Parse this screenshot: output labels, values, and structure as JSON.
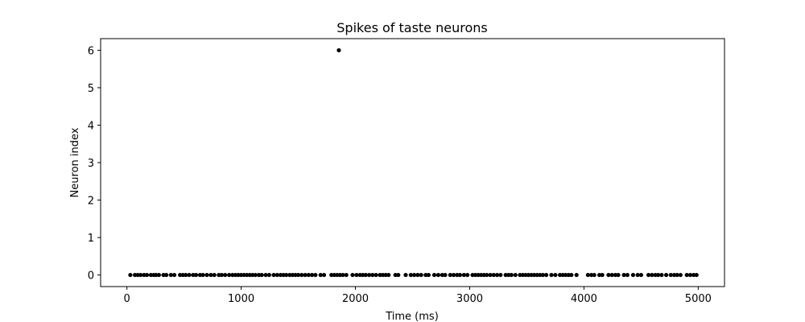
{
  "chart_data": {
    "type": "scatter",
    "title": "Spikes of taste neurons",
    "xlabel": "Time (ms)",
    "ylabel": "Neuron index",
    "xlim": [
      -230,
      5230
    ],
    "ylim": [
      -0.31,
      6.31
    ],
    "x_ticks": [
      0,
      1000,
      2000,
      3000,
      4000,
      5000
    ],
    "y_ticks": [
      0,
      1,
      2,
      3,
      4,
      5,
      6
    ],
    "grid": false,
    "marker_color": "#000000",
    "series": [
      {
        "points": [
          [
            1855,
            6
          ],
          [
            30,
            0
          ],
          [
            70,
            0
          ],
          [
            95,
            0
          ],
          [
            120,
            0
          ],
          [
            150,
            0
          ],
          [
            175,
            0
          ],
          [
            210,
            0
          ],
          [
            235,
            0
          ],
          [
            255,
            0
          ],
          [
            280,
            0
          ],
          [
            320,
            0
          ],
          [
            345,
            0
          ],
          [
            385,
            0
          ],
          [
            415,
            0
          ],
          [
            465,
            0
          ],
          [
            490,
            0
          ],
          [
            515,
            0
          ],
          [
            545,
            0
          ],
          [
            580,
            0
          ],
          [
            605,
            0
          ],
          [
            640,
            0
          ],
          [
            665,
            0
          ],
          [
            700,
            0
          ],
          [
            735,
            0
          ],
          [
            765,
            0
          ],
          [
            805,
            0
          ],
          [
            830,
            0
          ],
          [
            860,
            0
          ],
          [
            895,
            0
          ],
          [
            925,
            0
          ],
          [
            950,
            0
          ],
          [
            975,
            0
          ],
          [
            1000,
            0
          ],
          [
            1025,
            0
          ],
          [
            1050,
            0
          ],
          [
            1075,
            0
          ],
          [
            1100,
            0
          ],
          [
            1125,
            0
          ],
          [
            1155,
            0
          ],
          [
            1180,
            0
          ],
          [
            1215,
            0
          ],
          [
            1245,
            0
          ],
          [
            1285,
            0
          ],
          [
            1315,
            0
          ],
          [
            1345,
            0
          ],
          [
            1370,
            0
          ],
          [
            1395,
            0
          ],
          [
            1425,
            0
          ],
          [
            1450,
            0
          ],
          [
            1475,
            0
          ],
          [
            1500,
            0
          ],
          [
            1530,
            0
          ],
          [
            1560,
            0
          ],
          [
            1590,
            0
          ],
          [
            1620,
            0
          ],
          [
            1650,
            0
          ],
          [
            1695,
            0
          ],
          [
            1725,
            0
          ],
          [
            1790,
            0
          ],
          [
            1815,
            0
          ],
          [
            1840,
            0
          ],
          [
            1865,
            0
          ],
          [
            1890,
            0
          ],
          [
            1920,
            0
          ],
          [
            1975,
            0
          ],
          [
            2010,
            0
          ],
          [
            2040,
            0
          ],
          [
            2065,
            0
          ],
          [
            2090,
            0
          ],
          [
            2120,
            0
          ],
          [
            2150,
            0
          ],
          [
            2180,
            0
          ],
          [
            2215,
            0
          ],
          [
            2240,
            0
          ],
          [
            2265,
            0
          ],
          [
            2290,
            0
          ],
          [
            2350,
            0
          ],
          [
            2375,
            0
          ],
          [
            2440,
            0
          ],
          [
            2485,
            0
          ],
          [
            2515,
            0
          ],
          [
            2545,
            0
          ],
          [
            2575,
            0
          ],
          [
            2615,
            0
          ],
          [
            2640,
            0
          ],
          [
            2690,
            0
          ],
          [
            2725,
            0
          ],
          [
            2760,
            0
          ],
          [
            2785,
            0
          ],
          [
            2830,
            0
          ],
          [
            2860,
            0
          ],
          [
            2890,
            0
          ],
          [
            2915,
            0
          ],
          [
            2950,
            0
          ],
          [
            2980,
            0
          ],
          [
            3025,
            0
          ],
          [
            3050,
            0
          ],
          [
            3075,
            0
          ],
          [
            3100,
            0
          ],
          [
            3125,
            0
          ],
          [
            3150,
            0
          ],
          [
            3180,
            0
          ],
          [
            3210,
            0
          ],
          [
            3240,
            0
          ],
          [
            3270,
            0
          ],
          [
            3315,
            0
          ],
          [
            3340,
            0
          ],
          [
            3365,
            0
          ],
          [
            3400,
            0
          ],
          [
            3440,
            0
          ],
          [
            3465,
            0
          ],
          [
            3490,
            0
          ],
          [
            3515,
            0
          ],
          [
            3540,
            0
          ],
          [
            3565,
            0
          ],
          [
            3590,
            0
          ],
          [
            3615,
            0
          ],
          [
            3640,
            0
          ],
          [
            3670,
            0
          ],
          [
            3715,
            0
          ],
          [
            3750,
            0
          ],
          [
            3790,
            0
          ],
          [
            3815,
            0
          ],
          [
            3840,
            0
          ],
          [
            3865,
            0
          ],
          [
            3890,
            0
          ],
          [
            3935,
            0
          ],
          [
            4035,
            0
          ],
          [
            4065,
            0
          ],
          [
            4090,
            0
          ],
          [
            4135,
            0
          ],
          [
            4160,
            0
          ],
          [
            4215,
            0
          ],
          [
            4245,
            0
          ],
          [
            4275,
            0
          ],
          [
            4300,
            0
          ],
          [
            4350,
            0
          ],
          [
            4380,
            0
          ],
          [
            4430,
            0
          ],
          [
            4470,
            0
          ],
          [
            4500,
            0
          ],
          [
            4565,
            0
          ],
          [
            4595,
            0
          ],
          [
            4625,
            0
          ],
          [
            4650,
            0
          ],
          [
            4680,
            0
          ],
          [
            4720,
            0
          ],
          [
            4760,
            0
          ],
          [
            4790,
            0
          ],
          [
            4815,
            0
          ],
          [
            4845,
            0
          ],
          [
            4900,
            0
          ],
          [
            4930,
            0
          ],
          [
            4960,
            0
          ],
          [
            4985,
            0
          ]
        ]
      }
    ]
  }
}
